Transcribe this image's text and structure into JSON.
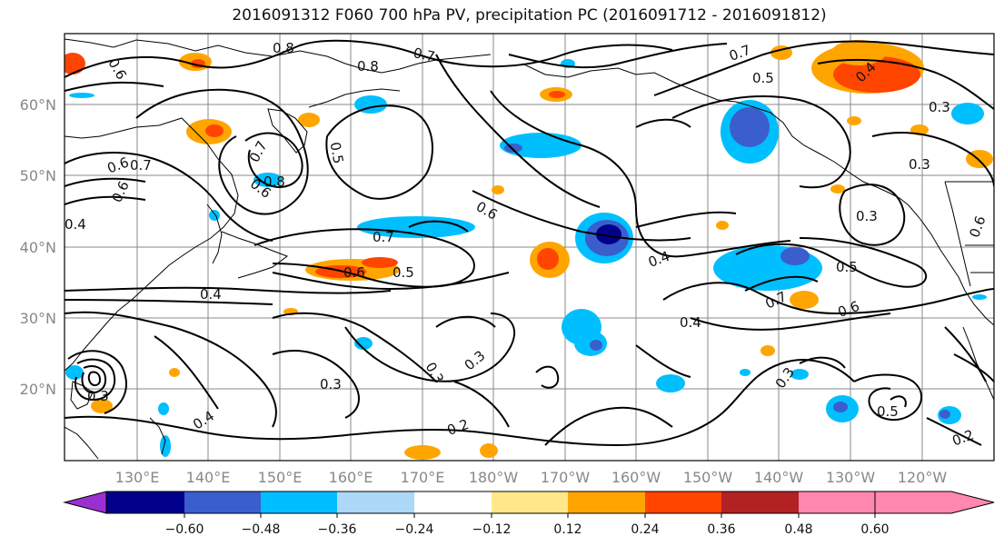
{
  "title": "2016091312 F060 700 hPa PV, precipitation PC (2016091712 - 2016091812)",
  "lat_labels": [
    "60°N",
    "50°N",
    "40°N",
    "30°N",
    "20°N"
  ],
  "lon_labels": [
    "130°E",
    "140°E",
    "150°E",
    "160°E",
    "170°E",
    "180°W",
    "170°W",
    "160°W",
    "150°W",
    "140°W",
    "130°W",
    "120°W"
  ],
  "colorbar": {
    "colors": [
      "#9b30d0",
      "#00008b",
      "#3a5fcd",
      "#00bfff",
      "#add8f7",
      "#ffffff",
      "#ffe88a",
      "#ffa500",
      "#ff4500",
      "#b22222",
      "#ff88b0"
    ],
    "tick_labels": [
      "−0.60",
      "−0.48",
      "−0.36",
      "−0.24",
      "−0.12",
      "0.12",
      "0.24",
      "0.36",
      "0.48",
      "0.60"
    ]
  },
  "contour_labels": [
    "0.6",
    "0.8",
    "0.7",
    "0.8",
    "0.7",
    "0.5",
    "0.7",
    "0.4",
    "0.6",
    "0.7",
    "0.6",
    "0.8",
    "0.6",
    "0.5",
    "0.4",
    "0.7",
    "0.6",
    "0.5",
    "0.4",
    "0.6",
    "0.4",
    "0.3",
    "0.3",
    "0.3",
    "0.4",
    "0.2",
    "0.5",
    "0.7",
    "0.6",
    "0.4",
    "0.3",
    "0.3",
    "0.3",
    "0.5",
    "0.3",
    "0.2",
    "0.3",
    "0.6"
  ]
}
